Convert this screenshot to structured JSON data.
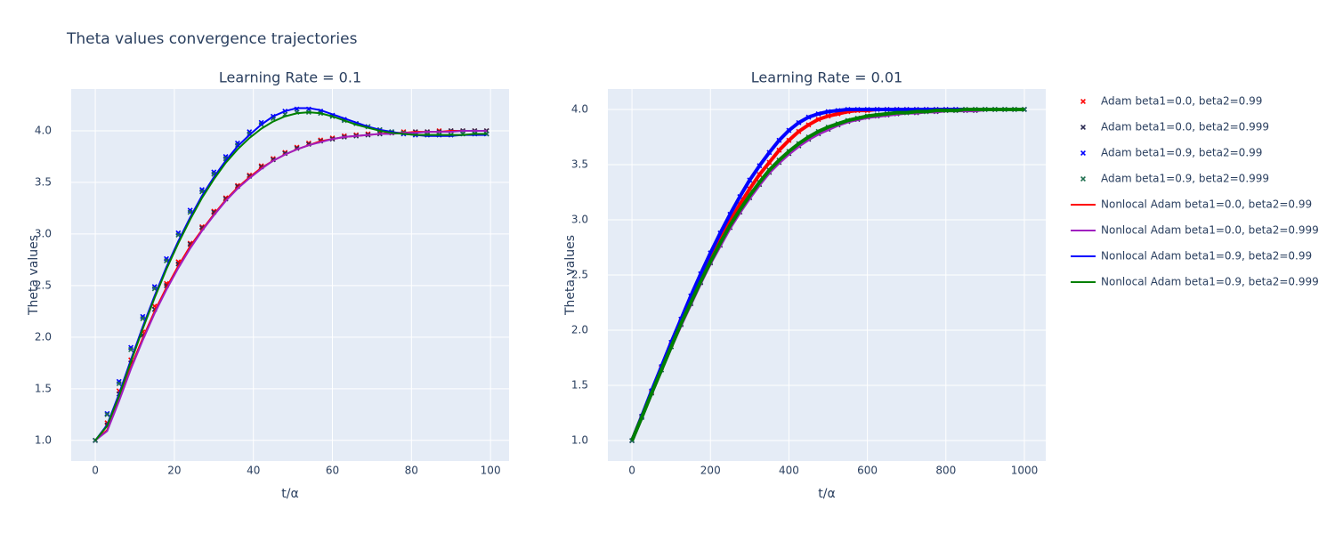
{
  "title": "Theta values convergence trajectories",
  "chart_data": [
    {
      "type": "scatter",
      "title": "Learning Rate = 0.1",
      "x_label": "t/α",
      "y_label": "Theta values",
      "xlim": [
        -6.1,
        104.7
      ],
      "ylim": [
        0.8,
        4.405
      ],
      "xticks": [
        0,
        20,
        40,
        60,
        80,
        100
      ],
      "yticks": [
        {
          "value": 1,
          "label": "1.0"
        },
        {
          "value": 1.5,
          "label": "1.5"
        },
        {
          "value": 2,
          "label": "2.0"
        },
        {
          "value": 2.5,
          "label": "2.5"
        },
        {
          "value": 3,
          "label": "3.0"
        },
        {
          "value": 3.5,
          "label": "3.5"
        },
        {
          "value": 4,
          "label": "4.0"
        }
      ],
      "grid": true,
      "x": [
        0,
        3,
        6,
        9,
        12,
        15,
        18,
        21,
        24,
        27,
        30,
        33,
        36,
        39,
        42,
        45,
        48,
        51,
        54,
        57,
        60,
        63,
        66,
        69,
        72,
        75,
        78,
        81,
        84,
        87,
        90,
        93,
        96,
        99
      ],
      "series": [
        {
          "name": "Adam beta1=0.0, beta2=0.99",
          "mode": "markers",
          "color": "#ff0000",
          "values": [
            1.0,
            1.17,
            1.48,
            1.78,
            2.05,
            2.3,
            2.52,
            2.73,
            2.91,
            3.07,
            3.22,
            3.35,
            3.47,
            3.57,
            3.66,
            3.73,
            3.79,
            3.84,
            3.88,
            3.91,
            3.93,
            3.95,
            3.96,
            3.97,
            3.98,
            3.98,
            3.99,
            3.99,
            3.99,
            4.0,
            4.0,
            4.0,
            4.0,
            4.0
          ]
        },
        {
          "name": "Adam beta1=0.0, beta2=0.999",
          "mode": "markers",
          "color": "#2a2a52",
          "values": [
            1.0,
            1.15,
            1.45,
            1.75,
            2.02,
            2.27,
            2.5,
            2.71,
            2.9,
            3.06,
            3.21,
            3.34,
            3.46,
            3.56,
            3.65,
            3.72,
            3.78,
            3.83,
            3.87,
            3.9,
            3.92,
            3.94,
            3.95,
            3.96,
            3.97,
            3.98,
            3.98,
            3.99,
            3.99,
            3.99,
            4.0,
            4.0,
            4.0,
            4.0
          ]
        },
        {
          "name": "Adam beta1=0.9, beta2=0.99",
          "mode": "markers",
          "color": "#0000ff",
          "values": [
            1.0,
            1.26,
            1.57,
            1.9,
            2.2,
            2.49,
            2.76,
            3.01,
            3.23,
            3.43,
            3.6,
            3.75,
            3.88,
            3.99,
            4.08,
            4.14,
            4.19,
            4.21,
            4.21,
            4.19,
            4.15,
            4.11,
            4.07,
            4.04,
            4.01,
            3.99,
            3.97,
            3.96,
            3.96,
            3.96,
            3.96,
            3.97,
            3.97,
            3.97
          ]
        },
        {
          "name": "Adam beta1=0.9, beta2=0.999",
          "mode": "markers",
          "color": "#1f6f4f",
          "values": [
            1.0,
            1.25,
            1.55,
            1.88,
            2.18,
            2.47,
            2.74,
            2.99,
            3.21,
            3.41,
            3.58,
            3.73,
            3.86,
            3.97,
            4.06,
            4.12,
            4.16,
            4.18,
            4.18,
            4.17,
            4.14,
            4.1,
            4.07,
            4.04,
            4.01,
            3.99,
            3.98,
            3.97,
            3.96,
            3.96,
            3.96,
            3.97,
            3.97,
            3.97
          ]
        },
        {
          "name": "Nonlocal Adam beta1=0.0, beta2=0.99",
          "mode": "lines",
          "color": "#ff0000",
          "values": [
            1.0,
            1.1,
            1.4,
            1.71,
            1.99,
            2.25,
            2.48,
            2.69,
            2.88,
            3.04,
            3.19,
            3.33,
            3.45,
            3.55,
            3.64,
            3.71,
            3.77,
            3.82,
            3.86,
            3.9,
            3.92,
            3.94,
            3.95,
            3.96,
            3.97,
            3.98,
            3.98,
            3.99,
            3.99,
            3.99,
            4.0,
            4.0,
            4.0,
            4.0
          ]
        },
        {
          "name": "Nonlocal Adam beta1=0.0, beta2=0.999",
          "mode": "lines",
          "color": "#a020c0",
          "values": [
            1.0,
            1.09,
            1.38,
            1.69,
            1.97,
            2.23,
            2.46,
            2.67,
            2.86,
            3.03,
            3.18,
            3.32,
            3.44,
            3.54,
            3.63,
            3.71,
            3.77,
            3.82,
            3.86,
            3.89,
            3.92,
            3.94,
            3.95,
            3.96,
            3.97,
            3.97,
            3.98,
            3.98,
            3.99,
            3.99,
            3.99,
            4.0,
            4.0,
            4.0
          ]
        },
        {
          "name": "Nonlocal Adam beta1=0.9, beta2=0.99",
          "mode": "lines",
          "color": "#0000ff",
          "values": [
            1.0,
            1.15,
            1.45,
            1.78,
            2.1,
            2.4,
            2.68,
            2.93,
            3.16,
            3.37,
            3.55,
            3.71,
            3.85,
            3.96,
            4.06,
            4.14,
            4.19,
            4.22,
            4.22,
            4.2,
            4.16,
            4.12,
            4.08,
            4.04,
            4.01,
            3.99,
            3.97,
            3.96,
            3.95,
            3.95,
            3.95,
            3.96,
            3.96,
            3.96
          ]
        },
        {
          "name": "Nonlocal Adam beta1=0.9, beta2=0.999",
          "mode": "lines",
          "color": "#008000",
          "values": [
            1.0,
            1.14,
            1.43,
            1.76,
            2.08,
            2.38,
            2.66,
            2.91,
            3.14,
            3.35,
            3.53,
            3.69,
            3.82,
            3.93,
            4.02,
            4.09,
            4.14,
            4.17,
            4.18,
            4.17,
            4.14,
            4.1,
            4.06,
            4.03,
            4.0,
            3.98,
            3.97,
            3.96,
            3.96,
            3.96,
            3.96,
            3.96,
            3.97,
            3.97
          ]
        }
      ]
    },
    {
      "type": "scatter",
      "title": "Learning Rate = 0.01",
      "x_label": "t/α",
      "y_label": "Theta values",
      "xlim": [
        -61.4,
        1054.5
      ],
      "ylim": [
        0.815,
        4.185
      ],
      "xticks": [
        0,
        200,
        400,
        600,
        800,
        1000
      ],
      "yticks": [
        {
          "value": 1,
          "label": "1.0"
        },
        {
          "value": 1.5,
          "label": "1.5"
        },
        {
          "value": 2,
          "label": "2.0"
        },
        {
          "value": 2.5,
          "label": "2.5"
        },
        {
          "value": 3,
          "label": "3.0"
        },
        {
          "value": 3.5,
          "label": "3.5"
        },
        {
          "value": 4,
          "label": "4.0"
        }
      ],
      "grid": true,
      "x": [
        0,
        25,
        50,
        75,
        100,
        125,
        150,
        175,
        200,
        225,
        250,
        275,
        300,
        325,
        350,
        375,
        400,
        425,
        450,
        475,
        500,
        525,
        550,
        575,
        600,
        625,
        650,
        675,
        700,
        725,
        750,
        775,
        800,
        825,
        850,
        875,
        900,
        925,
        950,
        975,
        1000
      ],
      "series": [
        {
          "mode": "markers",
          "color": "#ff0000",
          "values": [
            1.0,
            1.22,
            1.44,
            1.66,
            1.87,
            2.08,
            2.28,
            2.47,
            2.66,
            2.83,
            2.99,
            3.14,
            3.28,
            3.41,
            3.52,
            3.63,
            3.72,
            3.8,
            3.86,
            3.91,
            3.94,
            3.96,
            3.98,
            3.99,
            3.99,
            4.0,
            4.0,
            4.0,
            4.0,
            4.0,
            4.0,
            4.0,
            4.0,
            4.0,
            4.0,
            4.0,
            4.0,
            4.0,
            4.0,
            4.0,
            4.0
          ]
        },
        {
          "mode": "markers",
          "color": "#2a2a52",
          "values": [
            1.0,
            1.21,
            1.43,
            1.64,
            1.85,
            2.05,
            2.24,
            2.43,
            2.61,
            2.77,
            2.93,
            3.07,
            3.2,
            3.32,
            3.43,
            3.52,
            3.6,
            3.67,
            3.73,
            3.78,
            3.82,
            3.86,
            3.89,
            3.91,
            3.93,
            3.94,
            3.95,
            3.96,
            3.97,
            3.97,
            3.98,
            3.98,
            3.99,
            3.99,
            3.99,
            3.99,
            4.0,
            4.0,
            4.0,
            4.0,
            4.0
          ]
        },
        {
          "mode": "markers",
          "color": "#0000ff",
          "values": [
            1.0,
            1.22,
            1.45,
            1.67,
            1.89,
            2.1,
            2.31,
            2.51,
            2.7,
            2.88,
            3.05,
            3.21,
            3.36,
            3.49,
            3.61,
            3.72,
            3.81,
            3.88,
            3.93,
            3.96,
            3.98,
            3.99,
            4.0,
            4.0,
            4.0,
            4.0,
            4.0,
            4.0,
            4.0,
            4.0,
            4.0,
            4.0,
            4.0,
            4.0,
            4.0,
            4.0,
            4.0,
            4.0,
            4.0,
            4.0,
            4.0
          ]
        },
        {
          "mode": "markers",
          "color": "#1f6f4f",
          "values": [
            1.0,
            1.21,
            1.43,
            1.64,
            1.85,
            2.06,
            2.25,
            2.44,
            2.62,
            2.79,
            2.95,
            3.09,
            3.22,
            3.34,
            3.45,
            3.54,
            3.62,
            3.69,
            3.75,
            3.8,
            3.84,
            3.87,
            3.9,
            3.92,
            3.94,
            3.95,
            3.96,
            3.97,
            3.97,
            3.98,
            3.98,
            3.99,
            3.99,
            3.99,
            4.0,
            4.0,
            4.0,
            4.0,
            4.0,
            4.0,
            4.0
          ]
        },
        {
          "mode": "lines",
          "color": "#ff0000",
          "values": [
            1.0,
            1.22,
            1.44,
            1.66,
            1.87,
            2.08,
            2.28,
            2.47,
            2.66,
            2.83,
            2.99,
            3.14,
            3.28,
            3.41,
            3.52,
            3.63,
            3.72,
            3.8,
            3.86,
            3.91,
            3.94,
            3.96,
            3.98,
            3.99,
            3.99,
            4.0,
            4.0,
            4.0,
            4.0,
            4.0,
            4.0,
            4.0,
            4.0,
            4.0,
            4.0,
            4.0,
            4.0,
            4.0,
            4.0,
            4.0,
            4.0
          ]
        },
        {
          "mode": "lines",
          "color": "#a020c0",
          "values": [
            1.0,
            1.21,
            1.43,
            1.64,
            1.85,
            2.05,
            2.24,
            2.43,
            2.61,
            2.77,
            2.93,
            3.07,
            3.2,
            3.32,
            3.43,
            3.52,
            3.6,
            3.67,
            3.73,
            3.78,
            3.82,
            3.86,
            3.89,
            3.91,
            3.93,
            3.94,
            3.95,
            3.96,
            3.97,
            3.97,
            3.98,
            3.98,
            3.99,
            3.99,
            3.99,
            3.99,
            4.0,
            4.0,
            4.0,
            4.0,
            4.0
          ]
        },
        {
          "mode": "lines",
          "color": "#0000ff",
          "values": [
            1.0,
            1.22,
            1.45,
            1.67,
            1.89,
            2.1,
            2.31,
            2.51,
            2.7,
            2.88,
            3.05,
            3.21,
            3.36,
            3.49,
            3.61,
            3.72,
            3.81,
            3.88,
            3.93,
            3.96,
            3.98,
            3.99,
            4.0,
            4.0,
            4.0,
            4.0,
            4.0,
            4.0,
            4.0,
            4.0,
            4.0,
            4.0,
            4.0,
            4.0,
            4.0,
            4.0,
            4.0,
            4.0,
            4.0,
            4.0,
            4.0
          ]
        },
        {
          "mode": "lines",
          "color": "#008000",
          "values": [
            1.0,
            1.21,
            1.43,
            1.64,
            1.85,
            2.06,
            2.25,
            2.44,
            2.62,
            2.79,
            2.95,
            3.09,
            3.22,
            3.34,
            3.45,
            3.54,
            3.62,
            3.69,
            3.75,
            3.8,
            3.84,
            3.87,
            3.9,
            3.92,
            3.94,
            3.95,
            3.96,
            3.97,
            3.97,
            3.98,
            3.98,
            3.99,
            3.99,
            3.99,
            4.0,
            4.0,
            4.0,
            4.0,
            4.0,
            4.0,
            4.0
          ]
        }
      ]
    }
  ]
}
